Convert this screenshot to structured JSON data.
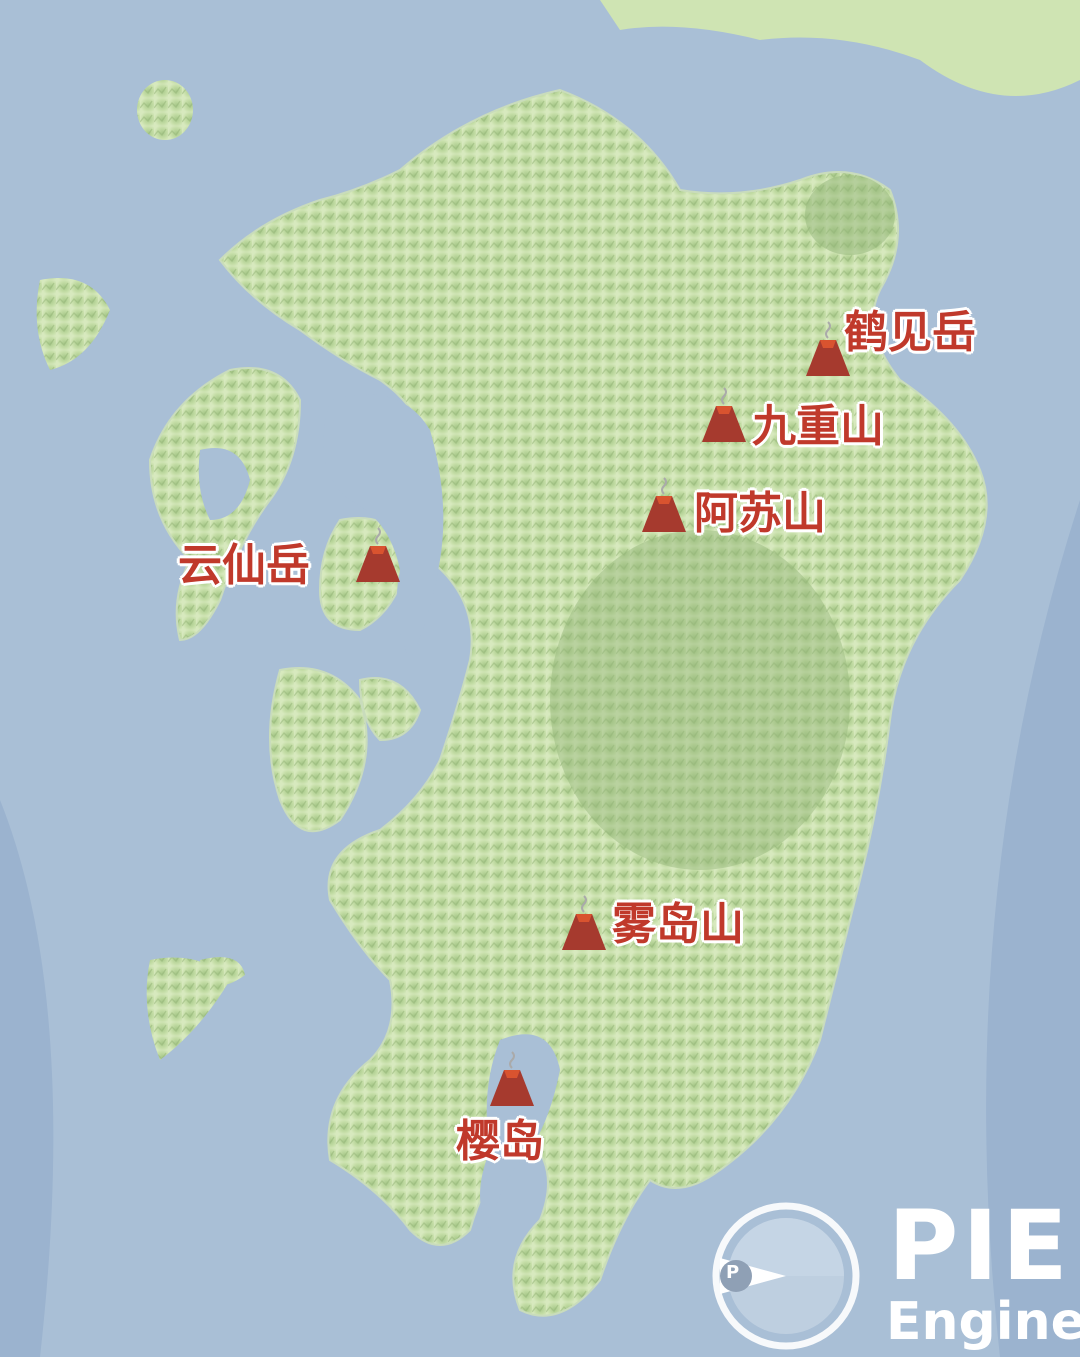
{
  "colors": {
    "sea": "#a9bfd6",
    "sea_deep": "#8fa9c6",
    "land_low": "#d3e7b8",
    "land_mid": "#b6d49a",
    "land_high": "#9fbf82",
    "volcano_red": "#b33a2e",
    "volcano_dark": "#6e2a24",
    "label_red": "#c0392b"
  },
  "volcanoes": [
    {
      "id": "tsurumi",
      "name": "鹤见岳",
      "icon": "volcano-icon"
    },
    {
      "id": "kuju",
      "name": "九重山",
      "icon": "volcano-icon"
    },
    {
      "id": "aso",
      "name": "阿苏山",
      "icon": "volcano-icon"
    },
    {
      "id": "unzen",
      "name": "云仙岳",
      "icon": "volcano-icon"
    },
    {
      "id": "kirishima",
      "name": "雾岛山",
      "icon": "volcano-icon"
    },
    {
      "id": "sakurajima",
      "name": "樱岛",
      "icon": "volcano-icon"
    }
  ],
  "logo": {
    "mark": "P",
    "title": "PIE",
    "subtitle": "Engine"
  }
}
